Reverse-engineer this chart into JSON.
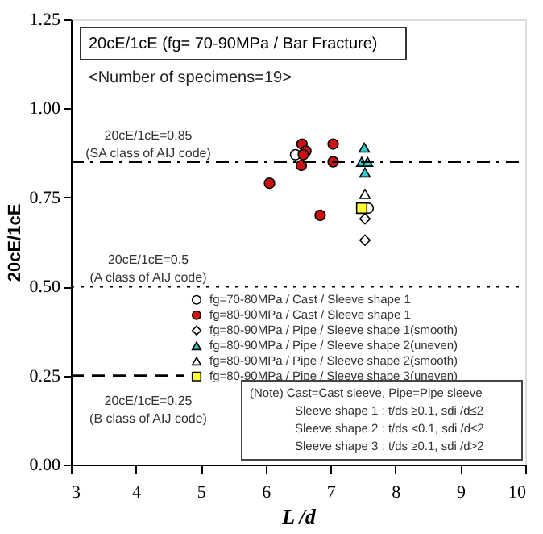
{
  "chart_data": {
    "type": "scatter",
    "title": "20cE/1cE (fg= 70-90MPa / Bar Fracture)",
    "subtitle": "<Number of specimens=19>",
    "xlabel": "L /d",
    "ylabel": "20cE/1cE",
    "xlim": [
      3,
      10
    ],
    "xticks": [
      3,
      4,
      5,
      6,
      7,
      8,
      9,
      10
    ],
    "ylim": [
      0,
      1.25
    ],
    "yticks": [
      {
        "value": 0,
        "label": "0.00"
      },
      {
        "value": 0.25,
        "label": "0.25"
      },
      {
        "value": 0.5,
        "label": "0.50"
      },
      {
        "value": 0.75,
        "label": "0.75"
      },
      {
        "value": 1,
        "label": "1.00"
      },
      {
        "value": 1.25,
        "label": "1.25"
      }
    ],
    "grid": false,
    "legend": "bottom",
    "series": [
      {
        "name": "fg=70-80MPa / Cast / Sleeve shape 1",
        "color": "#ffffff",
        "marker": "circle",
        "x": [
          6.46,
          7.58
        ],
        "values": [
          0.87,
          0.72
        ]
      },
      {
        "name": "fg=80-90MPa / Cast / Sleeve shape 1",
        "color": "#cc1111",
        "marker": "circle",
        "x": [
          6.56,
          6.62,
          6.58,
          6.55,
          7.04,
          7.04,
          6.06,
          6.84
        ],
        "values": [
          0.9,
          0.88,
          0.87,
          0.84,
          0.9,
          0.85,
          0.79,
          0.7
        ]
      },
      {
        "name": "fg=80-90MPa / Pipe / Sleeve shape 1(smooth)",
        "color": "#ffffff",
        "marker": "diamond",
        "x": [
          7.53,
          7.53
        ],
        "values": [
          0.69,
          0.63
        ]
      },
      {
        "name": "fg=80-90MPa / Pipe / Sleeve shape 2(uneven)",
        "color": "#33cccc",
        "marker": "triangle",
        "x": [
          7.52,
          7.48,
          7.57,
          7.53
        ],
        "values": [
          0.89,
          0.85,
          0.85,
          0.82
        ]
      },
      {
        "name": "fg=80-90MPa / Pipe / Sleeve shape 2(smooth)",
        "color": "#ffffff",
        "marker": "triangle",
        "x": [
          7.53
        ],
        "values": [
          0.76
        ]
      },
      {
        "name": "fg=80-90MPa / Pipe / Sleeve shape 3(uneven)",
        "color": "#ffff33",
        "marker": "square",
        "x": [
          7.48
        ],
        "values": [
          0.72
        ]
      }
    ],
    "ref_lines": [
      {
        "axis": "y",
        "value": 0.85,
        "label": "20cE/1cE=0.85\n(SA class of AIJ code)",
        "line_style": "dashdot"
      },
      {
        "axis": "y",
        "value": 0.5,
        "label": "20cE/1cE=0.5\n(A class of AIJ code)",
        "line_style": "dotted"
      },
      {
        "axis": "y",
        "value": 0.25,
        "label": "20cE/1cE=0.25\n(B class of AIJ code)",
        "line_style": "dashed"
      }
    ],
    "annotations": [
      "(Note)  Cast=Cast sleeve, Pipe=Pipe sleeve",
      "Sleeve shape 1 : t/ds ≥0.1, sdi /d≤2",
      "Sleeve shape 2 : t/ds <0.1, sdi /d≤2",
      "Sleeve shape 3 : t/ds ≥0.1, sdi /d>2"
    ]
  }
}
